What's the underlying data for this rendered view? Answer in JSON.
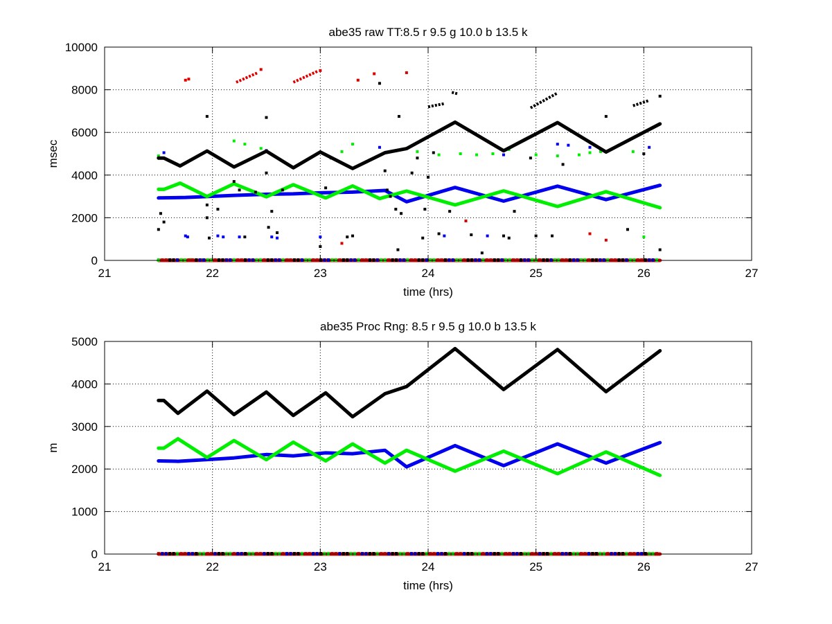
{
  "figure": {
    "background": "#ffffff"
  },
  "chart_data": [
    {
      "type": "scatter",
      "title": "abe35 raw TT:8.5 r  9.5 g  10.0 b  13.5 k",
      "xlabel": "time (hrs)",
      "ylabel": "msec",
      "xlim": [
        21,
        27
      ],
      "ylim": [
        0,
        10000
      ],
      "xticks": [
        21,
        22,
        23,
        24,
        25,
        26,
        27
      ],
      "yticks": [
        0,
        2000,
        4000,
        6000,
        8000,
        10000
      ],
      "xtick_labels": [
        "21",
        "22",
        "23",
        "24",
        "25",
        "26",
        "27"
      ],
      "ytick_labels": [
        "0",
        "2000",
        "4000",
        "6000",
        "8000",
        "10000"
      ],
      "grid": true,
      "series": [
        {
          "color": "#000000",
          "line": [
            [
              21.5,
              4800
            ],
            [
              21.55,
              4800
            ],
            [
              21.7,
              4430
            ],
            [
              21.95,
              5130
            ],
            [
              22.2,
              4380
            ],
            [
              22.5,
              5120
            ],
            [
              22.75,
              4340
            ],
            [
              23.0,
              5080
            ],
            [
              23.3,
              4310
            ],
            [
              23.6,
              5050
            ],
            [
              23.8,
              5240
            ],
            [
              24.25,
              6480
            ],
            [
              24.7,
              5140
            ],
            [
              25.2,
              6460
            ],
            [
              25.65,
              5080
            ],
            [
              26.15,
              6400
            ]
          ],
          "points": [
            [
              21.5,
              1450
            ],
            [
              21.52,
              2200
            ],
            [
              21.55,
              1800
            ],
            [
              21.95,
              6750
            ],
            [
              21.95,
              2600
            ],
            [
              21.95,
              2000
            ],
            [
              21.97,
              1050
            ],
            [
              22.05,
              2400
            ],
            [
              22.2,
              3700
            ],
            [
              22.25,
              3300
            ],
            [
              22.3,
              1100
            ],
            [
              22.4,
              3200
            ],
            [
              22.5,
              6700
            ],
            [
              22.5,
              4100
            ],
            [
              22.52,
              1550
            ],
            [
              22.55,
              2300
            ],
            [
              22.6,
              1300
            ],
            [
              22.65,
              3300
            ],
            [
              23.0,
              650
            ],
            [
              23.05,
              3400
            ],
            [
              23.1,
              4800
            ],
            [
              23.25,
              1100
            ],
            [
              23.3,
              1150
            ],
            [
              23.55,
              8300
            ],
            [
              23.6,
              4200
            ],
            [
              23.62,
              3300
            ],
            [
              23.65,
              3000
            ],
            [
              23.7,
              2400
            ],
            [
              23.72,
              500
            ],
            [
              23.73,
              6750
            ],
            [
              23.75,
              2200
            ],
            [
              23.85,
              4100
            ],
            [
              23.9,
              4800
            ],
            [
              23.95,
              1050
            ],
            [
              23.97,
              2400
            ],
            [
              24.0,
              3900
            ],
            [
              24.05,
              5050
            ],
            [
              24.1,
              1250
            ],
            [
              24.2,
              2300
            ],
            [
              24.4,
              1200
            ],
            [
              24.5,
              350
            ],
            [
              24.7,
              1150
            ],
            [
              24.75,
              1050
            ],
            [
              24.8,
              2300
            ],
            [
              24.95,
              4800
            ],
            [
              25.0,
              1150
            ],
            [
              25.15,
              1150
            ],
            [
              25.25,
              4500
            ],
            [
              25.65,
              6750
            ],
            [
              25.85,
              1450
            ],
            [
              26.0,
              5000
            ],
            [
              26.15,
              7700
            ],
            [
              26.15,
              500
            ]
          ],
          "cluster_segments": [
            [
              24.0,
              7200,
              24.15,
              7350
            ],
            [
              24.22,
              7880,
              24.28,
              7800
            ],
            [
              24.95,
              7150,
              25.2,
              7850
            ],
            [
              25.9,
              7250,
              26.05,
              7500
            ]
          ]
        },
        {
          "color": "#00ee00",
          "line": [
            [
              21.5,
              3330
            ],
            [
              21.55,
              3330
            ],
            [
              21.7,
              3620
            ],
            [
              21.95,
              3000
            ],
            [
              22.2,
              3590
            ],
            [
              22.5,
              2980
            ],
            [
              22.75,
              3550
            ],
            [
              23.05,
              2930
            ],
            [
              23.3,
              3490
            ],
            [
              23.55,
              2900
            ],
            [
              23.8,
              3250
            ],
            [
              24.25,
              2600
            ],
            [
              24.7,
              3260
            ],
            [
              25.2,
              2530
            ],
            [
              25.65,
              3220
            ],
            [
              26.15,
              2470
            ]
          ],
          "points": [
            [
              21.5,
              4900
            ],
            [
              22.2,
              5600
            ],
            [
              22.3,
              5450
            ],
            [
              22.45,
              5250
            ],
            [
              23.2,
              5100
            ],
            [
              23.3,
              5450
            ],
            [
              23.9,
              5100
            ],
            [
              24.1,
              4950
            ],
            [
              24.3,
              5000
            ],
            [
              24.45,
              4950
            ],
            [
              24.6,
              5000
            ],
            [
              24.75,
              5200
            ],
            [
              25.0,
              4950
            ],
            [
              25.2,
              4900
            ],
            [
              25.4,
              4950
            ],
            [
              25.5,
              5050
            ],
            [
              25.6,
              5100
            ],
            [
              25.9,
              5100
            ],
            [
              26.0,
              1100
            ],
            [
              21.6,
              30
            ],
            [
              21.8,
              40
            ],
            [
              21.9,
              30
            ],
            [
              22.0,
              20
            ],
            [
              22.7,
              30
            ],
            [
              23.8,
              20
            ],
            [
              24.7,
              30
            ]
          ]
        },
        {
          "color": "#0000ee",
          "line": [
            [
              21.5,
              2930
            ],
            [
              21.75,
              2950
            ],
            [
              22.2,
              3050
            ],
            [
              22.5,
              3100
            ],
            [
              22.75,
              3120
            ],
            [
              23.0,
              3170
            ],
            [
              23.3,
              3200
            ],
            [
              23.6,
              3280
            ],
            [
              23.8,
              2750
            ],
            [
              24.25,
              3420
            ],
            [
              24.7,
              2780
            ],
            [
              25.2,
              3480
            ],
            [
              25.65,
              2850
            ],
            [
              26.15,
              3520
            ]
          ],
          "points": [
            [
              21.55,
              5050
            ],
            [
              21.75,
              1150
            ],
            [
              21.77,
              1100
            ],
            [
              22.05,
              1150
            ],
            [
              22.1,
              1100
            ],
            [
              22.25,
              1100
            ],
            [
              22.5,
              5150
            ],
            [
              22.55,
              1100
            ],
            [
              22.6,
              1050
            ],
            [
              23.0,
              1100
            ],
            [
              23.55,
              5300
            ],
            [
              24.15,
              1150
            ],
            [
              24.55,
              1150
            ],
            [
              24.7,
              4950
            ],
            [
              25.2,
              5450
            ],
            [
              25.3,
              5400
            ],
            [
              25.5,
              5300
            ],
            [
              25.6,
              5150
            ],
            [
              26.05,
              5300
            ],
            [
              21.6,
              20
            ],
            [
              22.2,
              30
            ],
            [
              23.4,
              20
            ],
            [
              25.4,
              20
            ]
          ]
        },
        {
          "color": "#dd0000",
          "line": [
            [
              21.5,
              0
            ],
            [
              26.15,
              0
            ]
          ],
          "points": [
            [
              21.75,
              8450
            ],
            [
              21.78,
              8500
            ],
            [
              22.45,
              8950
            ],
            [
              23.0,
              8900
            ],
            [
              23.2,
              800
            ],
            [
              23.35,
              8450
            ],
            [
              23.5,
              8750
            ],
            [
              23.8,
              8800
            ],
            [
              24.35,
              1850
            ],
            [
              25.5,
              1250
            ],
            [
              25.65,
              950
            ]
          ],
          "cluster_segments": [
            [
              22.22,
              8350,
              22.42,
              8800
            ],
            [
              22.75,
              8350,
              22.98,
              8880
            ]
          ]
        }
      ]
    },
    {
      "type": "line",
      "title": "abe35 Proc Rng: 8.5 r  9.5 g  10.0 b  13.5  k",
      "xlabel": "time (hrs)",
      "ylabel": "m",
      "xlim": [
        21,
        27
      ],
      "ylim": [
        0,
        5000
      ],
      "xticks": [
        21,
        22,
        23,
        24,
        25,
        26,
        27
      ],
      "yticks": [
        0,
        1000,
        2000,
        3000,
        4000,
        5000
      ],
      "xtick_labels": [
        "21",
        "22",
        "23",
        "24",
        "25",
        "26",
        "27"
      ],
      "ytick_labels": [
        "0",
        "1000",
        "2000",
        "3000",
        "4000",
        "5000"
      ],
      "grid": true,
      "series": [
        {
          "color": "#000000",
          "line": [
            [
              21.5,
              3610
            ],
            [
              21.55,
              3610
            ],
            [
              21.68,
              3310
            ],
            [
              21.95,
              3830
            ],
            [
              22.2,
              3280
            ],
            [
              22.5,
              3810
            ],
            [
              22.75,
              3260
            ],
            [
              23.05,
              3790
            ],
            [
              23.3,
              3230
            ],
            [
              23.6,
              3770
            ],
            [
              23.8,
              3940
            ],
            [
              24.25,
              4830
            ],
            [
              24.7,
              3870
            ],
            [
              25.2,
              4810
            ],
            [
              25.65,
              3820
            ],
            [
              26.15,
              4780
            ]
          ],
          "points": []
        },
        {
          "color": "#00ee00",
          "line": [
            [
              21.5,
              2490
            ],
            [
              21.55,
              2490
            ],
            [
              21.68,
              2710
            ],
            [
              21.95,
              2270
            ],
            [
              22.2,
              2670
            ],
            [
              22.5,
              2220
            ],
            [
              22.75,
              2630
            ],
            [
              23.05,
              2190
            ],
            [
              23.3,
              2590
            ],
            [
              23.6,
              2140
            ],
            [
              23.8,
              2440
            ],
            [
              24.25,
              1950
            ],
            [
              24.7,
              2420
            ],
            [
              25.2,
              1890
            ],
            [
              25.65,
              2400
            ],
            [
              26.15,
              1850
            ]
          ],
          "points": []
        },
        {
          "color": "#0000ee",
          "line": [
            [
              21.5,
              2190
            ],
            [
              21.68,
              2180
            ],
            [
              22.2,
              2260
            ],
            [
              22.5,
              2340
            ],
            [
              22.75,
              2310
            ],
            [
              23.05,
              2380
            ],
            [
              23.3,
              2360
            ],
            [
              23.6,
              2440
            ],
            [
              23.8,
              2050
            ],
            [
              24.25,
              2550
            ],
            [
              24.7,
              2080
            ],
            [
              25.2,
              2590
            ],
            [
              25.65,
              2140
            ],
            [
              26.15,
              2620
            ]
          ],
          "points": []
        },
        {
          "color": "#dd0000",
          "line": [
            [
              21.5,
              0
            ],
            [
              26.15,
              0
            ]
          ],
          "points": []
        }
      ]
    }
  ]
}
